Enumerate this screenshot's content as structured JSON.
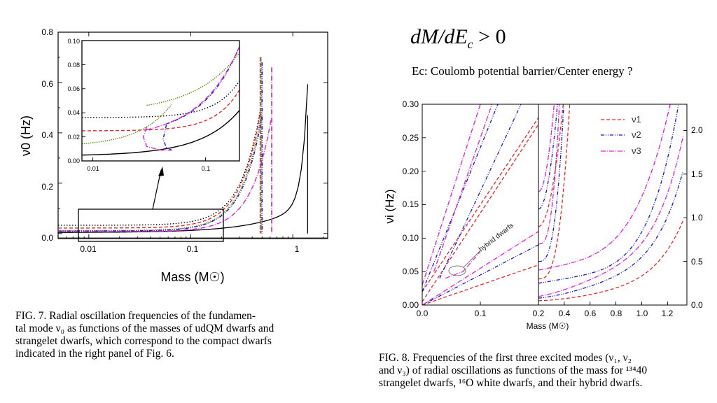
{
  "slide": {
    "equation": "dM/dE",
    "equation_sub": "c",
    "equation_rel": " > 0",
    "note": "Ec: Coulomb potential barrier/Center energy ?"
  },
  "fig7": {
    "caption": [
      "FIG. 7.     Radial oscillation frequencies of the fundamen-",
      "tal mode ν₀ as functions of the masses of udQM dwarfs and",
      "strangelet dwarfs, which correspond to the compact dwarfs",
      "indicated in the right panel of Fig. 6."
    ]
  },
  "fig8": {
    "caption": [
      "FIG. 8.   Frequencies of the first three excited modes (ν₁, ν₂",
      "and ν₃) of radial oscillations as functions of the mass for ¹³⁴40",
      "strangelet dwarfs, ¹⁶O white dwarfs, and their hybrid dwarfs."
    ],
    "annotation": "hybrid dwarfs"
  },
  "colors": {
    "red": "#e8262a",
    "blue": "#1515d0",
    "magenta": "#e020d8",
    "olive": "#6a8a1a",
    "black": "#000000"
  },
  "chart_data": [
    {
      "type": "line",
      "id": "fig7-main",
      "xlabel": "Mass (M☉)",
      "ylabel": "ν0 (Hz)",
      "x_scale": "log",
      "xlim": [
        0.005,
        2.2
      ],
      "ylim": [
        -0.02,
        0.8
      ],
      "xticks": [
        "0.01",
        "0.1",
        "1"
      ],
      "yticks": [
        "0.0",
        "0.2",
        "0.4",
        "0.6",
        "0.8"
      ],
      "series": [
        {
          "style": "black-solid",
          "x": [
            0.005,
            0.05,
            0.1,
            0.2,
            0.4,
            0.7,
            1.0,
            1.2,
            1.35,
            1.4
          ],
          "y": [
            0.002,
            0.012,
            0.02,
            0.035,
            0.06,
            0.1,
            0.16,
            0.24,
            0.38,
            0.47
          ]
        },
        {
          "style": "red-dash",
          "x": [
            0.005,
            0.02,
            0.05,
            0.1,
            0.2,
            0.3,
            0.45,
            0.5
          ],
          "y": [
            0.02,
            0.025,
            0.035,
            0.06,
            0.12,
            0.25,
            0.5,
            0.7
          ]
        },
        {
          "style": "black-dot",
          "x": [
            0.005,
            0.02,
            0.05,
            0.1,
            0.2,
            0.3,
            0.45,
            0.5
          ],
          "y": [
            0.035,
            0.04,
            0.05,
            0.075,
            0.14,
            0.27,
            0.52,
            0.7
          ]
        },
        {
          "style": "magenta-dashdot",
          "x": [
            0.005,
            0.02,
            0.05,
            0.1,
            0.2,
            0.35,
            0.55,
            0.62
          ],
          "y": [
            0.005,
            0.012,
            0.03,
            0.05,
            0.09,
            0.18,
            0.4,
            0.65
          ]
        }
      ]
    },
    {
      "type": "line",
      "id": "fig7-inset",
      "x_scale": "log",
      "xlim": [
        0.008,
        0.2
      ],
      "ylim": [
        0.0,
        0.1
      ],
      "xticks": [
        "0.01",
        "0.1"
      ],
      "yticks": [
        "0.00",
        "0.02",
        "0.04",
        "0.06",
        "0.08",
        "0.10"
      ]
    },
    {
      "type": "line",
      "id": "fig8-left",
      "ylabel": "νi (Hz)",
      "xlim": [
        0.0,
        0.2
      ],
      "ylim": [
        0.0,
        0.3
      ],
      "xticks": [
        "0.0",
        "0.1",
        "0.2"
      ],
      "yticks": [
        "0.00",
        "0.05",
        "0.10",
        "0.15",
        "0.20",
        "0.25",
        "0.30"
      ]
    },
    {
      "type": "line",
      "id": "fig8-right",
      "xlabel": "Mass (M☉)",
      "xlim": [
        0.2,
        1.35
      ],
      "ylim": [
        0.0,
        2.3
      ],
      "xticks": [
        "0.2",
        "0.4",
        "0.6",
        "0.8",
        "1.0",
        "1.2"
      ],
      "yticks": [
        "0.0",
        "0.5",
        "1.0",
        "1.5",
        "2.0"
      ],
      "legend": [
        "ν1",
        "ν2",
        "ν3"
      ],
      "legend_position": "top-right"
    }
  ]
}
